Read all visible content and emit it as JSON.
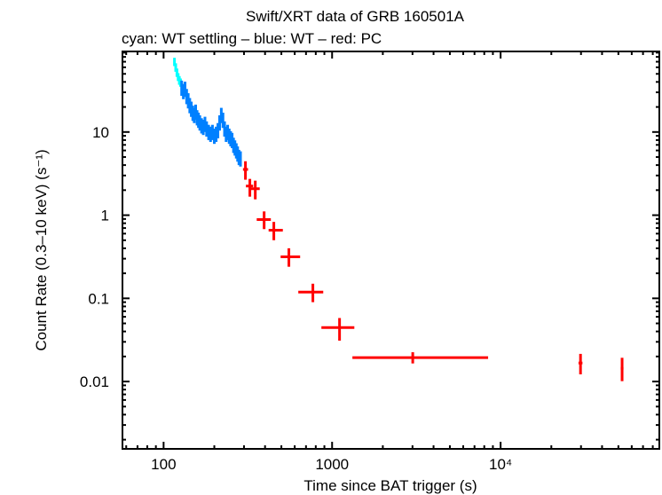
{
  "chart_data": {
    "type": "scatter",
    "title": "Swift/XRT data of GRB 160501A",
    "subtitle": "cyan: WT settling – blue: WT – red: PC",
    "xlabel": "Time since BAT trigger (s)",
    "ylabel": "Count Rate (0.3–10 keV) (s⁻¹)",
    "xscale": "log",
    "yscale": "log",
    "xlim": [
      57,
      87500
    ],
    "ylim": [
      0.00155,
      93
    ],
    "grid": false,
    "x_ticks": [
      {
        "value": 100,
        "label": "100"
      },
      {
        "value": 1000,
        "label": "1000"
      },
      {
        "value": 10000,
        "label": "10⁴"
      }
    ],
    "y_ticks": [
      {
        "value": 10,
        "label": "10"
      },
      {
        "value": 1,
        "label": "1"
      },
      {
        "value": 0.1,
        "label": "0.1"
      },
      {
        "value": 0.01,
        "label": "0.01"
      }
    ],
    "series": [
      {
        "mode": "WT settling",
        "color": "#00ffff",
        "points": [
          {
            "x": 116,
            "y": 70,
            "ylo": 62,
            "yhi": 78
          },
          {
            "x": 118,
            "y": 60,
            "ylo": 53,
            "yhi": 67
          },
          {
            "x": 120,
            "y": 52,
            "ylo": 46,
            "yhi": 58
          },
          {
            "x": 122,
            "y": 46,
            "ylo": 41,
            "yhi": 51
          },
          {
            "x": 124,
            "y": 42,
            "ylo": 37,
            "yhi": 47
          },
          {
            "x": 126,
            "y": 39,
            "ylo": 35,
            "yhi": 44
          }
        ]
      },
      {
        "mode": "WT",
        "color": "#0080ff",
        "points": [
          {
            "x": 128,
            "y": 34
          },
          {
            "x": 131,
            "y": 31
          },
          {
            "x": 134,
            "y": 33
          },
          {
            "x": 137,
            "y": 27
          },
          {
            "x": 140,
            "y": 24
          },
          {
            "x": 143,
            "y": 21
          },
          {
            "x": 146,
            "y": 19
          },
          {
            "x": 149,
            "y": 17
          },
          {
            "x": 152,
            "y": 16
          },
          {
            "x": 155,
            "y": 17.5
          },
          {
            "x": 158,
            "y": 15
          },
          {
            "x": 161,
            "y": 14
          },
          {
            "x": 164,
            "y": 13
          },
          {
            "x": 168,
            "y": 12
          },
          {
            "x": 172,
            "y": 11.5
          },
          {
            "x": 176,
            "y": 12.5
          },
          {
            "x": 180,
            "y": 11
          },
          {
            "x": 185,
            "y": 10
          },
          {
            "x": 190,
            "y": 9.5
          },
          {
            "x": 195,
            "y": 10
          },
          {
            "x": 200,
            "y": 9
          },
          {
            "x": 205,
            "y": 9.5
          },
          {
            "x": 210,
            "y": 10.5
          },
          {
            "x": 215,
            "y": 13
          },
          {
            "x": 220,
            "y": 16
          },
          {
            "x": 225,
            "y": 14
          },
          {
            "x": 230,
            "y": 11
          },
          {
            "x": 235,
            "y": 9.5
          },
          {
            "x": 240,
            "y": 10
          },
          {
            "x": 245,
            "y": 9
          },
          {
            "x": 250,
            "y": 8.4
          },
          {
            "x": 255,
            "y": 8
          },
          {
            "x": 260,
            "y": 7
          },
          {
            "x": 265,
            "y": 6.5
          },
          {
            "x": 270,
            "y": 6
          },
          {
            "x": 275,
            "y": 5.5
          },
          {
            "x": 280,
            "y": 5
          },
          {
            "x": 286,
            "y": 4.8
          }
        ]
      },
      {
        "mode": "PC",
        "color": "#ff0000",
        "points": [
          {
            "x": 306,
            "y": 3.55,
            "xlo": 296,
            "xhi": 317,
            "ylo": 2.67,
            "yhi": 4.45
          },
          {
            "x": 325,
            "y": 2.24,
            "xlo": 308,
            "xhi": 340,
            "ylo": 1.67,
            "yhi": 2.73
          },
          {
            "x": 350,
            "y": 2.08,
            "xlo": 330,
            "xhi": 372,
            "ylo": 1.55,
            "yhi": 2.6
          },
          {
            "x": 395,
            "y": 0.885,
            "xlo": 357,
            "xhi": 433,
            "ylo": 0.68,
            "yhi": 1.11
          },
          {
            "x": 451,
            "y": 0.66,
            "xlo": 420,
            "xhi": 510,
            "ylo": 0.5,
            "yhi": 0.83
          },
          {
            "x": 554,
            "y": 0.316,
            "xlo": 495,
            "xhi": 646,
            "ylo": 0.24,
            "yhi": 0.4
          },
          {
            "x": 769,
            "y": 0.119,
            "xlo": 630,
            "xhi": 886,
            "ylo": 0.09,
            "yhi": 0.15
          },
          {
            "x": 1107,
            "y": 0.0446,
            "xlo": 864,
            "xhi": 1355,
            "ylo": 0.031,
            "yhi": 0.058
          },
          {
            "x": 3010,
            "y": 0.0194,
            "xlo": 1320,
            "xhi": 8430,
            "ylo": 0.0165,
            "yhi": 0.0225
          },
          {
            "x": 29800,
            "y": 0.0167,
            "xlo": 29000,
            "xhi": 30600,
            "ylo": 0.0122,
            "yhi": 0.0215
          },
          {
            "x": 52600,
            "y": 0.0144,
            "xlo": 51600,
            "xhi": 53600,
            "ylo": 0.0101,
            "yhi": 0.0193
          }
        ]
      }
    ]
  }
}
